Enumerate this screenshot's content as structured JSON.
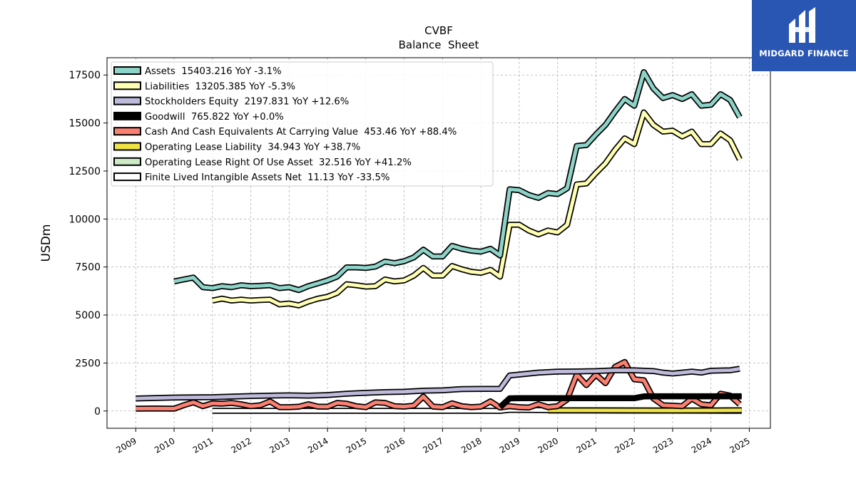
{
  "brand": {
    "name": "MIDGARD FINANCE",
    "bg_color": "#2a56b3"
  },
  "chart_data": {
    "type": "line",
    "title": "CVBF",
    "subtitle": "Balance  Sheet",
    "xlabel": "",
    "ylabel": "USDm",
    "xlim": [
      2008.25,
      2025.55
    ],
    "ylim": [
      -900,
      18400
    ],
    "x_ticks": [
      "2009",
      "2010",
      "2011",
      "2012",
      "2013",
      "2014",
      "2015",
      "2016",
      "2017",
      "2018",
      "2019",
      "2020",
      "2021",
      "2022",
      "2023",
      "2024",
      "2025"
    ],
    "y_ticks": [
      0,
      2500,
      5000,
      7500,
      10000,
      12500,
      15000,
      17500
    ],
    "grid": true,
    "legend_position": "top-left",
    "series": [
      {
        "name": "Assets",
        "legend": "Assets  15403.216 YoY -3.1%",
        "color": "#8dd3c7",
        "x": [
          2010.0,
          2010.5,
          2010.75,
          2011.0,
          2011.25,
          2011.5,
          2011.75,
          2012.0,
          2012.25,
          2012.5,
          2012.75,
          2013.0,
          2013.25,
          2013.5,
          2013.75,
          2014.0,
          2014.25,
          2014.5,
          2014.75,
          2015.0,
          2015.25,
          2015.5,
          2015.75,
          2016.0,
          2016.25,
          2016.5,
          2016.75,
          2017.0,
          2017.25,
          2017.5,
          2017.75,
          2018.0,
          2018.25,
          2018.5,
          2018.75,
          2019.0,
          2019.25,
          2019.5,
          2019.75,
          2020.0,
          2020.25,
          2020.5,
          2020.75,
          2021.0,
          2021.25,
          2021.5,
          2021.75,
          2022.0,
          2022.25,
          2022.5,
          2022.75,
          2023.0,
          2023.25,
          2023.5,
          2023.75,
          2024.0,
          2024.25,
          2024.5,
          2024.75
        ],
        "y": [
          6750,
          6950,
          6450,
          6400,
          6500,
          6450,
          6550,
          6500,
          6520,
          6550,
          6400,
          6450,
          6300,
          6500,
          6650,
          6800,
          7000,
          7480,
          7480,
          7450,
          7520,
          7780,
          7700,
          7800,
          8000,
          8400,
          8050,
          8050,
          8600,
          8450,
          8350,
          8300,
          8450,
          8100,
          11550,
          11500,
          11250,
          11100,
          11350,
          11300,
          11600,
          13800,
          13850,
          14400,
          14900,
          15600,
          16250,
          15900,
          17650,
          16800,
          16300,
          16450,
          16250,
          16500,
          15900,
          15950,
          16500,
          16200,
          15300
        ]
      },
      {
        "name": "Liabilities",
        "legend": "Liabilities  13205.385 YoY -5.3%",
        "color": "#ffffb3",
        "x": [
          2011.0,
          2011.25,
          2011.5,
          2011.75,
          2012.0,
          2012.25,
          2012.5,
          2012.75,
          2013.0,
          2013.25,
          2013.5,
          2013.75,
          2014.0,
          2014.25,
          2014.5,
          2014.75,
          2015.0,
          2015.25,
          2015.5,
          2015.75,
          2016.0,
          2016.25,
          2016.5,
          2016.75,
          2017.0,
          2017.25,
          2017.5,
          2017.75,
          2018.0,
          2018.25,
          2018.5,
          2018.75,
          2019.0,
          2019.25,
          2019.5,
          2019.75,
          2020.0,
          2020.25,
          2020.5,
          2020.75,
          2021.0,
          2021.25,
          2021.5,
          2021.75,
          2022.0,
          2022.25,
          2022.5,
          2022.75,
          2023.0,
          2023.25,
          2023.5,
          2023.75,
          2024.0,
          2024.25,
          2024.5,
          2024.75
        ],
        "y": [
          5750,
          5850,
          5750,
          5800,
          5750,
          5780,
          5800,
          5550,
          5600,
          5500,
          5700,
          5850,
          5950,
          6150,
          6600,
          6550,
          6480,
          6500,
          6850,
          6750,
          6800,
          7050,
          7450,
          7050,
          7050,
          7550,
          7380,
          7250,
          7200,
          7350,
          7000,
          9700,
          9700,
          9400,
          9200,
          9400,
          9300,
          9700,
          11800,
          11850,
          12400,
          12900,
          13600,
          14200,
          13900,
          15550,
          14900,
          14550,
          14600,
          14300,
          14550,
          13900,
          13900,
          14450,
          14100,
          13100
        ]
      },
      {
        "name": "Stockholders Equity",
        "legend": "Stockholders Equity  2197.831 YoY +12.6%",
        "color": "#bebada",
        "x": [
          2009.0,
          2010.0,
          2011.0,
          2012.0,
          2013.0,
          2013.5,
          2014.0,
          2014.5,
          2015.0,
          2015.5,
          2016.0,
          2016.5,
          2017.0,
          2017.5,
          2018.0,
          2018.5,
          2018.75,
          2019.0,
          2019.5,
          2020.0,
          2020.5,
          2021.0,
          2021.5,
          2022.0,
          2022.5,
          2022.75,
          2023.0,
          2023.5,
          2023.75,
          2024.0,
          2024.5,
          2024.75
        ],
        "y": [
          650,
          700,
          720,
          780,
          820,
          800,
          830,
          900,
          950,
          980,
          1000,
          1060,
          1080,
          1140,
          1150,
          1150,
          1850,
          1900,
          2000,
          2050,
          2060,
          2080,
          2120,
          2120,
          2080,
          2000,
          1950,
          2050,
          2000,
          2100,
          2120,
          2200
        ]
      },
      {
        "name": "Goodwill",
        "legend": "Goodwill  765.822 YoY +0.0%",
        "color": "#000000",
        "x": [
          2018.5,
          2018.75,
          2019.0,
          2019.5,
          2020.0,
          2020.5,
          2021.0,
          2021.5,
          2022.0,
          2022.25,
          2022.5,
          2023.0,
          2023.5,
          2024.0,
          2024.5,
          2024.8
        ],
        "y": [
          200,
          660,
          665,
          665,
          665,
          665,
          665,
          665,
          665,
          760,
          765,
          765,
          765,
          765,
          765,
          765
        ]
      },
      {
        "name": "Cash And Cash Equivalents At Carrying Value",
        "legend": "Cash And Cash Equivalents At Carrying Value  453.46 YoY +88.4%",
        "color": "#fb8072",
        "x": [
          2009.0,
          2009.5,
          2010.0,
          2010.25,
          2010.5,
          2010.75,
          2011.0,
          2011.25,
          2011.5,
          2011.75,
          2012.0,
          2012.25,
          2012.5,
          2012.75,
          2013.0,
          2013.25,
          2013.5,
          2013.75,
          2014.0,
          2014.25,
          2014.5,
          2014.75,
          2015.0,
          2015.25,
          2015.5,
          2015.75,
          2016.0,
          2016.25,
          2016.5,
          2016.75,
          2017.0,
          2017.25,
          2017.5,
          2017.75,
          2018.0,
          2018.25,
          2018.5,
          2018.75,
          2019.0,
          2019.25,
          2019.5,
          2019.75,
          2020.0,
          2020.25,
          2020.5,
          2020.75,
          2021.0,
          2021.25,
          2021.5,
          2021.75,
          2022.0,
          2022.25,
          2022.5,
          2022.75,
          2023.0,
          2023.25,
          2023.5,
          2023.75,
          2024.0,
          2024.25,
          2024.5,
          2024.75
        ],
        "y": [
          120,
          130,
          120,
          300,
          450,
          250,
          400,
          380,
          420,
          350,
          250,
          300,
          500,
          200,
          200,
          220,
          350,
          230,
          220,
          420,
          380,
          250,
          200,
          450,
          420,
          250,
          230,
          280,
          750,
          230,
          200,
          400,
          250,
          200,
          230,
          500,
          180,
          250,
          200,
          180,
          350,
          200,
          250,
          600,
          1900,
          1350,
          1900,
          1450,
          2300,
          2550,
          1650,
          1600,
          650,
          300,
          280,
          250,
          650,
          350,
          300,
          900,
          800,
          350
        ]
      },
      {
        "name": "Operating Lease Liability",
        "legend": "Operating Lease Liability  34.943 YoY +38.7%",
        "color": "#f0e442",
        "x": [
          2019.75,
          2020.0,
          2021.0,
          2022.0,
          2023.0,
          2024.0,
          2024.8
        ],
        "y": [
          30,
          30,
          30,
          28,
          26,
          28,
          35
        ]
      },
      {
        "name": "Operating Lease Right Of Use Asset",
        "legend": "Operating Lease Right Of Use Asset  32.516 YoY +41.2%",
        "color": "#ccebc5",
        "x": [
          2019.75,
          2020.0,
          2021.0,
          2022.0,
          2023.0,
          2024.0,
          2024.8
        ],
        "y": [
          28,
          28,
          28,
          26,
          24,
          26,
          32
        ]
      },
      {
        "name": "Finite Lived Intangible Assets Net",
        "legend": "Finite Lived Intangible Assets Net  11.13 YoY -33.5%",
        "color": "#ffffff",
        "x": [
          2011.0,
          2012.0,
          2013.0,
          2014.0,
          2015.0,
          2016.0,
          2017.0,
          2018.0,
          2018.5,
          2018.75,
          2019.0,
          2020.0,
          2021.0,
          2022.0,
          2023.0,
          2024.0,
          2024.8
        ],
        "y": [
          10,
          10,
          10,
          10,
          10,
          10,
          10,
          8,
          6,
          60,
          55,
          40,
          30,
          25,
          18,
          14,
          11
        ]
      }
    ]
  }
}
